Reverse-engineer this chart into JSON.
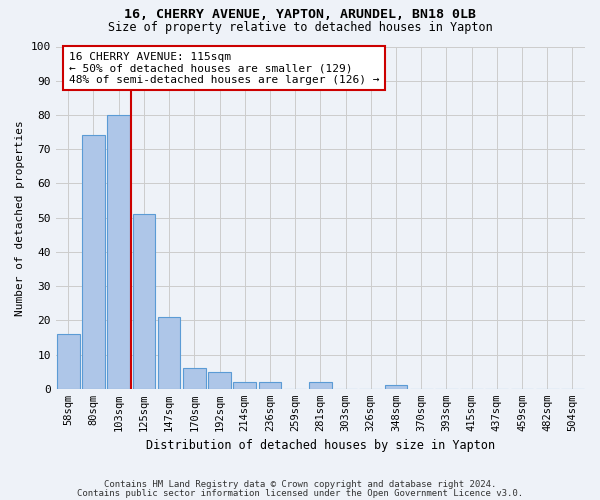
{
  "title1": "16, CHERRY AVENUE, YAPTON, ARUNDEL, BN18 0LB",
  "title2": "Size of property relative to detached houses in Yapton",
  "xlabel": "Distribution of detached houses by size in Yapton",
  "ylabel": "Number of detached properties",
  "bar_labels": [
    "58sqm",
    "80sqm",
    "103sqm",
    "125sqm",
    "147sqm",
    "170sqm",
    "192sqm",
    "214sqm",
    "236sqm",
    "259sqm",
    "281sqm",
    "303sqm",
    "326sqm",
    "348sqm",
    "370sqm",
    "393sqm",
    "415sqm",
    "437sqm",
    "459sqm",
    "482sqm",
    "504sqm"
  ],
  "bar_values": [
    16,
    74,
    80,
    51,
    21,
    6,
    5,
    2,
    2,
    0,
    2,
    0,
    0,
    1,
    0,
    0,
    0,
    0,
    0,
    0,
    0
  ],
  "bar_color": "#aec6e8",
  "bar_edge_color": "#5b9bd5",
  "annotation_line1": "16 CHERRY AVENUE: 115sqm",
  "annotation_line2": "← 50% of detached houses are smaller (129)",
  "annotation_line3": "48% of semi-detached houses are larger (126) →",
  "red_line_color": "#cc0000",
  "annotation_box_color": "#ffffff",
  "annotation_box_edge": "#cc0000",
  "grid_color": "#cccccc",
  "background_color": "#eef2f8",
  "ylim": [
    0,
    100
  ],
  "yticks": [
    0,
    10,
    20,
    30,
    40,
    50,
    60,
    70,
    80,
    90,
    100
  ],
  "footer1": "Contains HM Land Registry data © Crown copyright and database right 2024.",
  "footer2": "Contains public sector information licensed under the Open Government Licence v3.0."
}
